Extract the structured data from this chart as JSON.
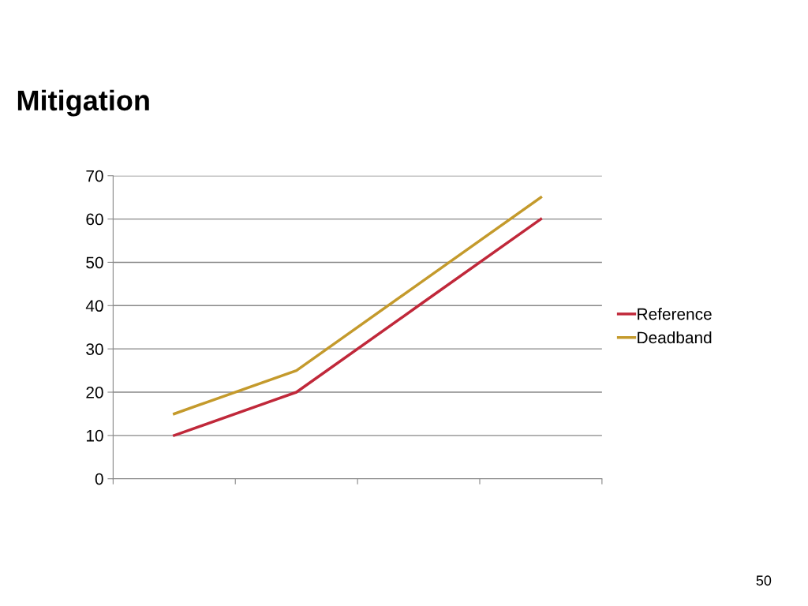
{
  "chart_data": {
    "type": "line",
    "title": "Mitigation",
    "categories": [
      null,
      null,
      null,
      null
    ],
    "series": [
      {
        "name": "Reference",
        "color": "#c0283a",
        "values": [
          10,
          20,
          40,
          60
        ]
      },
      {
        "name": "Deadband",
        "color": "#c49a2c",
        "values": [
          15,
          25,
          45,
          65
        ]
      }
    ],
    "ylim": [
      0,
      70
    ],
    "yticks": [
      0,
      10,
      20,
      30,
      40,
      50,
      60,
      70
    ],
    "grid": "y",
    "legend": "right",
    "marker": "none",
    "line_style": "solid",
    "annotations": [
      "50"
    ]
  }
}
